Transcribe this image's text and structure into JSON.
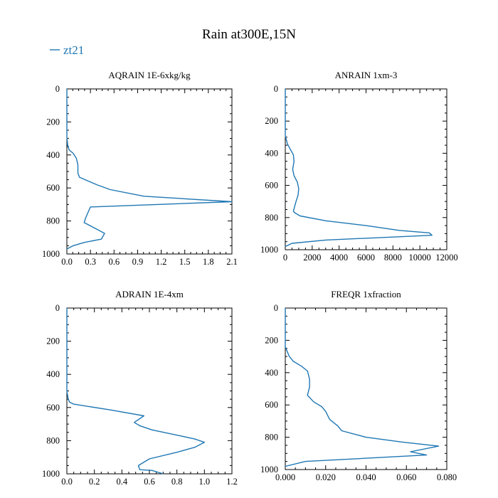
{
  "figure": {
    "title": "Rain at300E,15N",
    "legend": [
      {
        "label": "zt21",
        "color": "#1f77b4"
      }
    ]
  },
  "chart_data": [
    {
      "type": "line",
      "title": "AQRAIN  1E-6xkg/kg",
      "xlabel": "",
      "ylabel": "",
      "xlim": [
        0,
        2.1
      ],
      "ylim": [
        1000,
        0
      ],
      "xticks": [
        "0.0",
        "0.3",
        "0.6",
        "0.9",
        "1.2",
        "1.5",
        "1.8",
        "2.1"
      ],
      "xtick_values": [
        0,
        0.3,
        0.6,
        0.9,
        1.2,
        1.5,
        1.8,
        2.1
      ],
      "yticks": [
        "0",
        "200",
        "400",
        "600",
        "800",
        "1000"
      ],
      "ytick_values": [
        0,
        200,
        400,
        600,
        800,
        1000
      ],
      "series": [
        {
          "name": "zt21",
          "color": "#1f77b4",
          "x": [
            0.0,
            0.0,
            0.01,
            0.03,
            0.08,
            0.12,
            0.14,
            0.14,
            0.16,
            0.28,
            0.38,
            0.55,
            0.98,
            2.1,
            0.3,
            0.24,
            0.22,
            0.36,
            0.48,
            0.44,
            0.22,
            0.08,
            0.0
          ],
          "y": [
            0,
            290,
            340,
            370,
            390,
            420,
            460,
            510,
            535,
            560,
            580,
            610,
            650,
            683,
            715,
            780,
            810,
            845,
            875,
            910,
            930,
            950,
            970
          ]
        }
      ]
    },
    {
      "type": "line",
      "title": "ANRAIN  1xm-3",
      "xlabel": "",
      "ylabel": "",
      "xlim": [
        0,
        12000
      ],
      "ylim": [
        1000,
        0
      ],
      "xticks": [
        "0",
        "2000",
        "4000",
        "6000",
        "8000",
        "10000",
        "12000"
      ],
      "xtick_values": [
        0,
        2000,
        4000,
        6000,
        8000,
        10000,
        12000
      ],
      "yticks": [
        "0",
        "200",
        "400",
        "600",
        "800",
        "1000"
      ],
      "ytick_values": [
        0,
        200,
        400,
        600,
        800,
        1000
      ],
      "series": [
        {
          "name": "zt21",
          "color": "#1f77b4",
          "x": [
            0,
            0,
            150,
            400,
            600,
            650,
            550,
            650,
            900,
            1000,
            950,
            800,
            600,
            700,
            1100,
            3000,
            6000,
            8500,
            10700,
            10900,
            3000,
            500,
            0
          ],
          "y": [
            0,
            290,
            340,
            380,
            410,
            450,
            500,
            540,
            580,
            620,
            660,
            700,
            760,
            770,
            790,
            820,
            850,
            880,
            895,
            910,
            940,
            960,
            980
          ]
        }
      ]
    },
    {
      "type": "line",
      "title": "ADRAIN  1E-4xm",
      "xlabel": "",
      "ylabel": "",
      "xlim": [
        0,
        1.2
      ],
      "ylim": [
        1000,
        0
      ],
      "xticks": [
        "0.0",
        "0.2",
        "0.4",
        "0.6",
        "0.8",
        "1.0",
        "1.2"
      ],
      "xtick_values": [
        0,
        0.2,
        0.4,
        0.6,
        0.8,
        1.0,
        1.2
      ],
      "yticks": [
        "0",
        "200",
        "400",
        "600",
        "800",
        "1000"
      ],
      "ytick_values": [
        0,
        200,
        400,
        600,
        800,
        1000
      ],
      "series": [
        {
          "name": "zt21",
          "color": "#1f77b4",
          "x": [
            0.0,
            0.0,
            0.01,
            0.02,
            0.05,
            0.32,
            0.56,
            0.49,
            0.53,
            0.62,
            0.82,
            0.93,
            1.0,
            0.93,
            0.8,
            0.6,
            0.52,
            0.53,
            0.62,
            0.7
          ],
          "y": [
            0,
            500,
            550,
            568,
            580,
            615,
            650,
            690,
            710,
            735,
            770,
            790,
            810,
            840,
            870,
            910,
            950,
            975,
            980,
            1000
          ]
        }
      ]
    },
    {
      "type": "line",
      "title": "FREQR  1xfraction",
      "xlabel": "",
      "ylabel": "",
      "xlim": [
        0,
        0.08
      ],
      "ylim": [
        1000,
        0
      ],
      "xticks": [
        "0.000",
        "0.020",
        "0.040",
        "0.060",
        "0.080"
      ],
      "xtick_values": [
        0,
        0.02,
        0.04,
        0.06,
        0.08
      ],
      "yticks": [
        "0",
        "200",
        "400",
        "600",
        "800",
        "1000"
      ],
      "ytick_values": [
        0,
        200,
        400,
        600,
        800,
        1000
      ],
      "series": [
        {
          "name": "zt21",
          "color": "#1f77b4",
          "x": [
            0.0,
            0.0,
            0.001,
            0.002,
            0.004,
            0.008,
            0.011,
            0.012,
            0.012,
            0.011,
            0.014,
            0.018,
            0.02,
            0.022,
            0.026,
            0.028,
            0.04,
            0.058,
            0.076,
            0.062,
            0.07,
            0.01,
            0.0
          ],
          "y": [
            0,
            240,
            270,
            300,
            330,
            360,
            390,
            440,
            490,
            540,
            580,
            610,
            640,
            690,
            730,
            760,
            800,
            830,
            855,
            890,
            910,
            950,
            980
          ]
        }
      ]
    }
  ]
}
